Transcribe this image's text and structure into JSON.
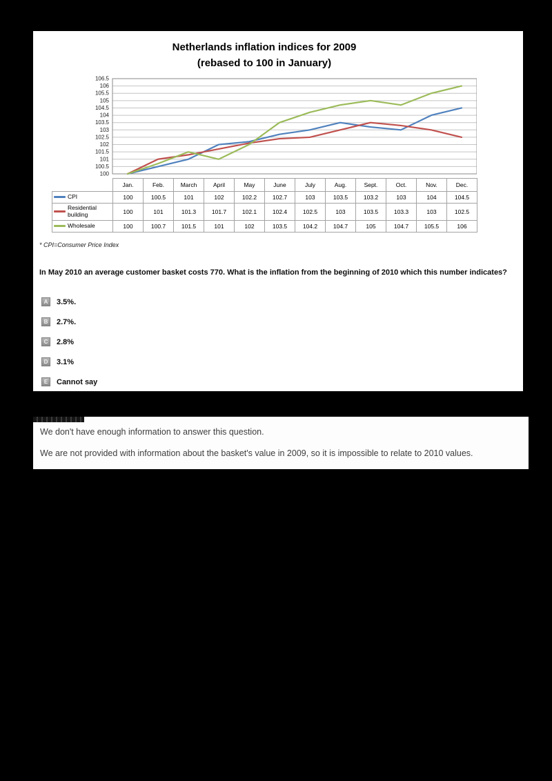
{
  "chart": {
    "title_line1": "Netherlands inflation indices for 2009",
    "title_line2": "(rebased to 100 in January)"
  },
  "chart_data": {
    "type": "line",
    "title": "Netherlands inflation indices for 2009 (rebased to 100 in January)",
    "categories": [
      "Jan.",
      "Feb.",
      "March",
      "April",
      "May",
      "June",
      "July",
      "Aug.",
      "Sept.",
      "Oct.",
      "Nov.",
      "Dec."
    ],
    "series": [
      {
        "name": "CPI",
        "color": "#4f81bd",
        "values": [
          100,
          100.5,
          101,
          102,
          102.2,
          102.7,
          103,
          103.5,
          103.2,
          103,
          104,
          104.5
        ]
      },
      {
        "name": "Residential building",
        "color": "#c0504d",
        "values": [
          100,
          101,
          101.3,
          101.7,
          102.1,
          102.4,
          102.5,
          103,
          103.5,
          103.3,
          103,
          102.5
        ]
      },
      {
        "name": "Wholesale",
        "color": "#9bbb59",
        "values": [
          100,
          100.7,
          101.5,
          101,
          102,
          103.5,
          104.2,
          104.7,
          105,
          104.7,
          105.5,
          106
        ]
      }
    ],
    "ylim": [
      100,
      106.5
    ],
    "ytick_step": 0.5,
    "grid": true,
    "legend_position": "left-of-table-rows",
    "grid_color": "#c4c4c4",
    "axis_color": "#8a8a8a"
  },
  "question_block": {
    "footnote": "* CPI=Consumer Price Index",
    "question": "In May 2010 an average customer basket costs 770. What is the inflation from the beginning of 2010 which this number indicates?",
    "options": [
      {
        "letter": "A",
        "text": "3.5%."
      },
      {
        "letter": "B",
        "text": "2.7%."
      },
      {
        "letter": "C",
        "text": "2.8%"
      },
      {
        "letter": "D",
        "text": "3.1%"
      },
      {
        "letter": "E",
        "text": "Cannot say"
      }
    ]
  },
  "explanation": {
    "line1": "We don't have enough information to answer this question.",
    "line2": "We are not provided with information about the basket's value in 2009, so it is impossible to relate to 2010 values."
  }
}
